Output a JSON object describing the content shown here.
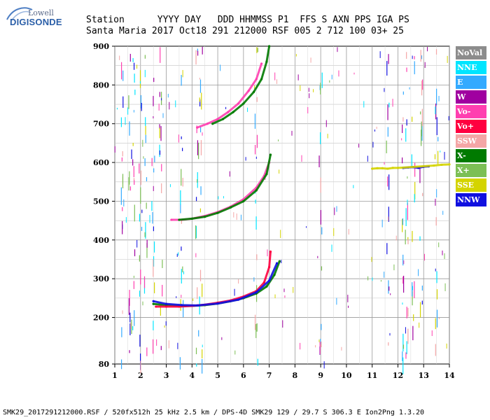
{
  "logo": {
    "brand": "Lowell",
    "product": "DIGISONDE"
  },
  "header": {
    "labels": "Station      YYYY DAY   DDD HHMMSS P1  FFS S AXN PPS IGA PS",
    "values": "Santa Maria 2017 Oct18 291 212000 RSF 005 2 712 100 03+ 25"
  },
  "footer": "SMK29_2017291212000.RSF / 520fx512h 25 kHz 2.5 km / DPS-4D SMK29 129 / 29.7 S 306.3 E Ion2Png 1.3.20",
  "legend": [
    {
      "label": "NoVal",
      "color": "#8c8c8c"
    },
    {
      "label": "NNE",
      "color": "#00e5ff"
    },
    {
      "label": "E",
      "color": "#33aaff"
    },
    {
      "label": "W",
      "color": "#a000a0"
    },
    {
      "label": "Vo-",
      "color": "#ff3fb0"
    },
    {
      "label": "Vo+",
      "color": "#ff0040"
    },
    {
      "label": "SSW",
      "color": "#f4a6a6"
    },
    {
      "label": "X-",
      "color": "#007a00"
    },
    {
      "label": "X+",
      "color": "#7cbf55"
    },
    {
      "label": "SSE",
      "color": "#d4d400"
    },
    {
      "label": "NNW",
      "color": "#1010e0"
    }
  ],
  "chart_data": {
    "type": "scatter",
    "x_ticks": [
      1,
      2,
      3,
      4,
      5,
      6,
      7,
      8,
      9,
      10,
      11,
      12,
      13,
      14
    ],
    "y_ticks": [
      80,
      200,
      300,
      400,
      500,
      600,
      700,
      800,
      900
    ],
    "xlim": [
      1,
      14
    ],
    "ylim": [
      80,
      900
    ],
    "grid": true,
    "legend_position": "right",
    "series": [
      {
        "name": "X-",
        "color": "#007a00",
        "x": [
          2.5,
          3.0,
          3.5,
          4.0,
          4.5,
          5.0,
          5.5,
          6.0,
          6.5,
          6.9,
          7.2,
          7.4
        ],
        "y": [
          235,
          232,
          230,
          230,
          232,
          236,
          242,
          250,
          262,
          280,
          310,
          345
        ]
      },
      {
        "name": "Vo+",
        "color": "#ff0040",
        "x": [
          2.6,
          3.0,
          3.5,
          4.0,
          4.5,
          5.0,
          5.5,
          6.0,
          6.5,
          6.8,
          7.0,
          7.05
        ],
        "y": [
          228,
          228,
          228,
          230,
          233,
          238,
          244,
          254,
          268,
          290,
          330,
          370
        ]
      },
      {
        "name": "NNW",
        "color": "#1010e0",
        "x": [
          2.5,
          3.0,
          3.6,
          4.2,
          5.0,
          5.8,
          6.5,
          7.0,
          7.3
        ],
        "y": [
          242,
          235,
          232,
          231,
          236,
          246,
          265,
          295,
          340
        ]
      },
      {
        "name": "Vo-",
        "color": "#ff3fb0",
        "x": [
          3.2,
          3.6,
          4.0,
          4.5,
          5.0,
          5.5,
          6.0,
          6.5,
          6.8,
          7.0
        ],
        "y": [
          452,
          452,
          455,
          462,
          472,
          486,
          505,
          535,
          565,
          600
        ]
      },
      {
        "name": "X-",
        "color": "#007a00",
        "x": [
          3.5,
          4.0,
          4.5,
          5.0,
          5.5,
          6.0,
          6.5,
          6.9,
          7.05
        ],
        "y": [
          452,
          455,
          460,
          470,
          484,
          500,
          528,
          570,
          620
        ]
      },
      {
        "name": "Vo-",
        "color": "#ff3fb0",
        "x": [
          4.2,
          4.6,
          5.0,
          5.4,
          5.8,
          6.2,
          6.5,
          6.7
        ],
        "y": [
          690,
          700,
          712,
          730,
          752,
          785,
          815,
          855
        ]
      },
      {
        "name": "X-",
        "color": "#007a00",
        "x": [
          4.8,
          5.2,
          5.6,
          6.0,
          6.4,
          6.7,
          6.9,
          7.0
        ],
        "y": [
          700,
          712,
          730,
          752,
          782,
          815,
          860,
          900
        ]
      },
      {
        "name": "NNW",
        "color": "#1010e0",
        "x": [
          12.2,
          12.4,
          12.6,
          12.8,
          13.0,
          13.2
        ],
        "y": [
          586,
          587,
          588,
          586,
          589,
          590
        ]
      },
      {
        "name": "SSE",
        "color": "#d4d400",
        "x": [
          11.0,
          11.2,
          11.4,
          11.6,
          11.8,
          12.0,
          13.4,
          13.7,
          14.0
        ],
        "y": [
          584,
          585,
          585,
          584,
          586,
          586,
          592,
          594,
          595
        ]
      }
    ]
  }
}
